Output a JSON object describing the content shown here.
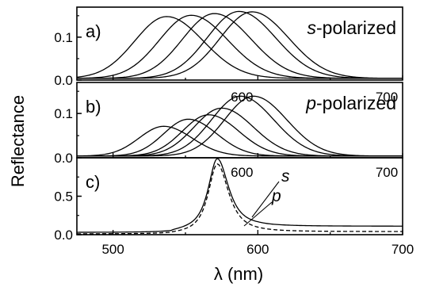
{
  "figure": {
    "y_axis_title": "Reflectance",
    "x_axis_title": "λ (nm)"
  },
  "chart_data": [
    {
      "panel": "a)",
      "type": "line",
      "annotation": "s-polarized",
      "annotation_italic_part": "s",
      "annotation_rest": "-polarized",
      "x": {
        "range": [
          475,
          700
        ],
        "ticks": []
      },
      "y": {
        "range": [
          0,
          0.17
        ],
        "ticks": [
          0.0,
          0.1
        ],
        "tick_labels": [
          "0.0",
          "0.1"
        ]
      },
      "series": [
        {
          "peak_nm": 537,
          "peak_value": 0.144,
          "width_nm": 22
        },
        {
          "peak_nm": 554,
          "peak_value": 0.147,
          "width_nm": 22
        },
        {
          "peak_nm": 570,
          "peak_value": 0.151,
          "width_nm": 22
        },
        {
          "peak_nm": 587,
          "peak_value": 0.156,
          "width_nm": 22
        },
        {
          "peak_nm": 596,
          "peak_value": 0.155,
          "width_nm": 22
        }
      ]
    },
    {
      "panel": "b)",
      "type": "line",
      "annotation": "p-polarized",
      "annotation_italic_part": "p",
      "annotation_rest": "-polarized",
      "x": {
        "range": [
          475,
          700
        ],
        "ticks": [
          600,
          700
        ],
        "tick_labels": [
          "600",
          "700"
        ]
      },
      "y": {
        "range": [
          0,
          0.17
        ],
        "ticks": [
          0.0,
          0.1
        ],
        "tick_labels": [
          "0.0",
          "0.1"
        ]
      },
      "series": [
        {
          "peak_nm": 535,
          "peak_value": 0.067,
          "width_nm": 17
        },
        {
          "peak_nm": 552,
          "peak_value": 0.083,
          "width_nm": 17
        },
        {
          "peak_nm": 566,
          "peak_value": 0.093,
          "width_nm": 18
        },
        {
          "peak_nm": 575,
          "peak_value": 0.108,
          "width_nm": 19
        },
        {
          "peak_nm": 588,
          "peak_value": 0.135,
          "width_nm": 20
        },
        {
          "peak_nm": 597,
          "peak_value": 0.135,
          "width_nm": 20
        }
      ]
    },
    {
      "panel": "c)",
      "type": "line",
      "x": {
        "range": [
          475,
          700
        ],
        "ticks": [
          500,
          600,
          700
        ],
        "tick_labels": [
          "500",
          "600",
          "700"
        ],
        "inner_tick_labels": [
          "600",
          "700"
        ]
      },
      "y": {
        "range": [
          0,
          1.0
        ],
        "ticks": [
          0.0,
          0.5
        ],
        "tick_labels": [
          "0.0",
          "0.5"
        ]
      },
      "series": [
        {
          "name": "s",
          "style": "solid",
          "peak_nm": 572,
          "peak_value": 0.99,
          "baseline_left": 0.03,
          "baseline_right": 0.11
        },
        {
          "name": "p",
          "style": "dashed",
          "peak_nm": 572,
          "peak_value": 0.92,
          "baseline_left": 0.01,
          "baseline_right": 0.04
        }
      ]
    }
  ]
}
